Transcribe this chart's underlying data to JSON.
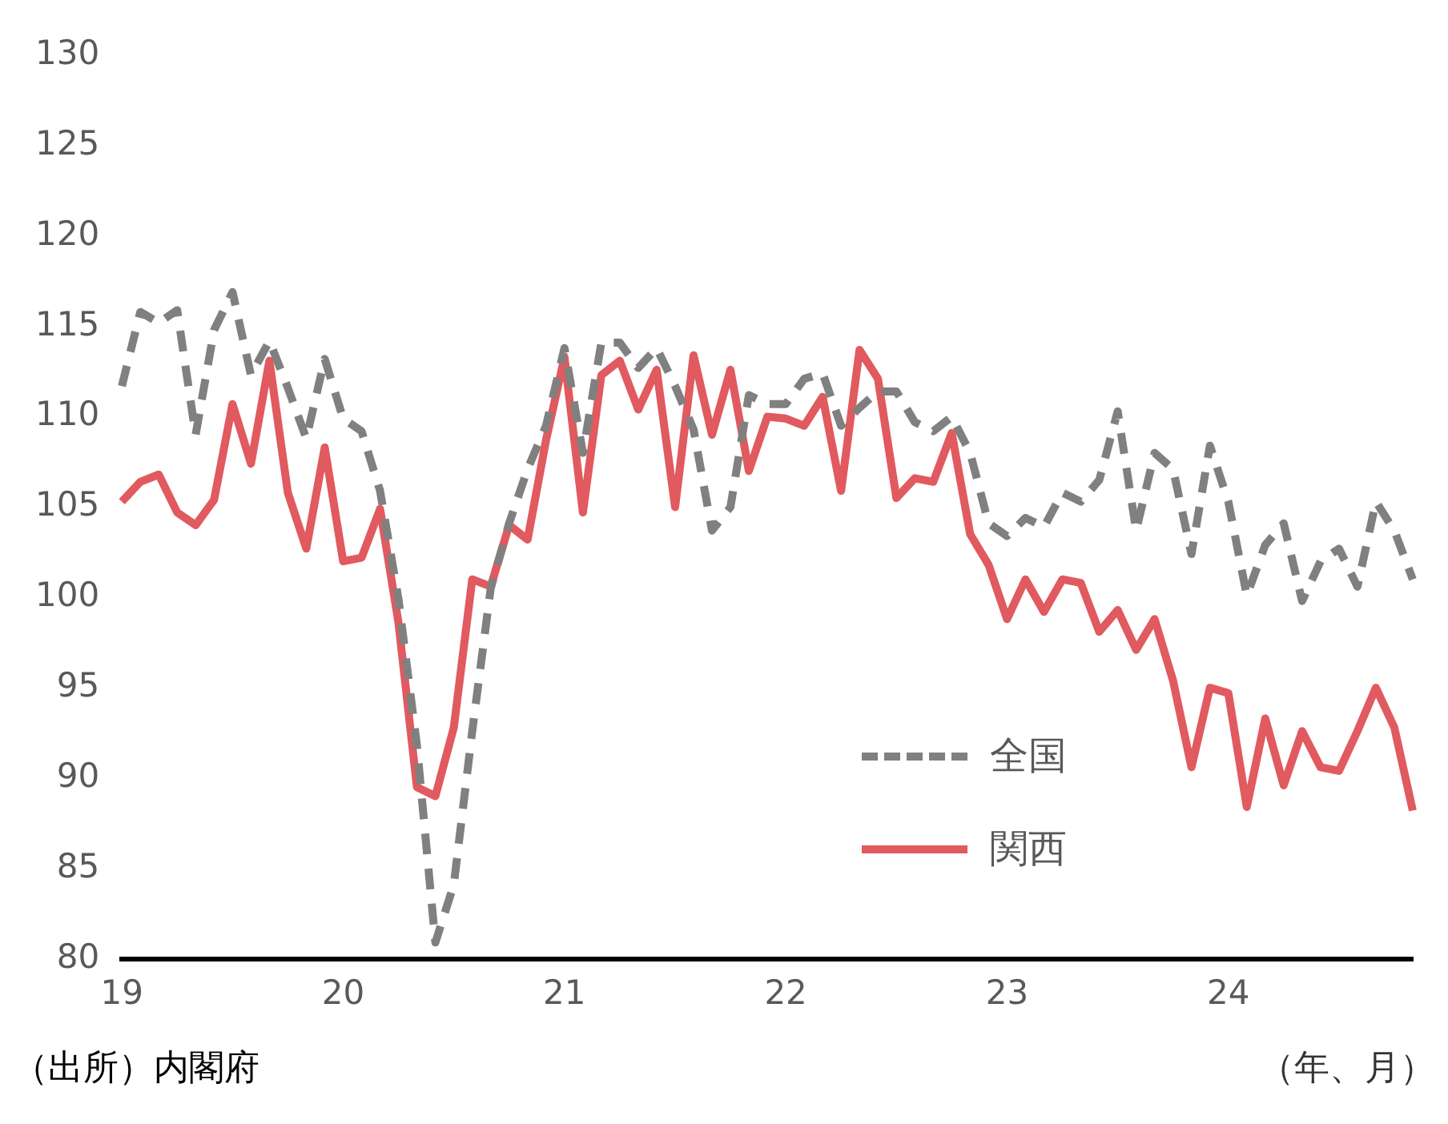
{
  "chart_data": {
    "type": "line",
    "xlabel": "（年、月）",
    "annotations": [
      "（出所）内閣府"
    ],
    "categories": [
      "19",
      null,
      null,
      null,
      null,
      null,
      null,
      null,
      null,
      null,
      null,
      null,
      "20",
      null,
      null,
      null,
      null,
      null,
      null,
      null,
      null,
      null,
      null,
      null,
      "21",
      null,
      null,
      null,
      null,
      null,
      null,
      null,
      null,
      null,
      null,
      null,
      "22",
      null,
      null,
      null,
      null,
      null,
      null,
      null,
      null,
      null,
      null,
      null,
      "23",
      null,
      null,
      null,
      null,
      null,
      null,
      null,
      null,
      null,
      null,
      null,
      "24",
      null,
      null,
      null,
      null,
      null,
      null,
      null,
      null,
      null,
      null
    ],
    "series": [
      {
        "name": "全国",
        "color": "#808080",
        "line_style": "dashed",
        "values": [
          111.7,
          115.8,
          115.2,
          115.9,
          109.0,
          114.8,
          116.9,
          112.3,
          114.2,
          111.6,
          108.8,
          113.2,
          109.9,
          109.2,
          105.9,
          99.9,
          91.8,
          80.9,
          84.1,
          92.6,
          100.5,
          104.1,
          107.1,
          109.5,
          113.8,
          108.0,
          114.1,
          114.1,
          112.7,
          113.8,
          111.7,
          109.3,
          103.7,
          105.0,
          111.2,
          110.7,
          110.7,
          112.1,
          112.4,
          109.5,
          110.5,
          111.4,
          111.4,
          109.7,
          109.2,
          110.0,
          108.0,
          104.1,
          103.4,
          104.4,
          103.9,
          105.8,
          105.3,
          106.5,
          110.3,
          103.7,
          108.0,
          107.1,
          102.4,
          108.4,
          105.3,
          100.1,
          102.9,
          104.1,
          99.8,
          102.0,
          102.7,
          100.6,
          105.3,
          103.7,
          101.0
        ]
      },
      {
        "name": "関西",
        "color": "#e05a5f",
        "line_style": "solid",
        "values": [
          105.3,
          106.4,
          106.8,
          104.7,
          104.0,
          105.4,
          110.7,
          107.4,
          113.1,
          105.8,
          102.7,
          108.3,
          102.0,
          102.2,
          104.9,
          98.6,
          89.5,
          89.0,
          92.8,
          101.0,
          100.6,
          104.0,
          103.2,
          108.7,
          113.3,
          104.7,
          112.3,
          113.1,
          110.4,
          112.6,
          105.0,
          113.4,
          109.0,
          112.6,
          107.0,
          110.0,
          109.9,
          109.5,
          111.1,
          105.9,
          113.7,
          112.1,
          105.5,
          106.6,
          106.4,
          109.1,
          103.5,
          101.8,
          98.8,
          101.0,
          99.2,
          101.0,
          100.8,
          98.1,
          99.3,
          97.1,
          98.8,
          95.4,
          90.6,
          95.0,
          94.7,
          88.4,
          93.3,
          89.6,
          92.6,
          90.6,
          90.4,
          92.6,
          95.0,
          92.8,
          88.2
        ]
      }
    ],
    "ylim": [
      80,
      130
    ],
    "yticks": [
      80,
      85,
      90,
      95,
      100,
      105,
      110,
      115,
      120,
      125,
      130
    ],
    "grid": false,
    "legend": "bottom right",
    "marker": "none"
  }
}
